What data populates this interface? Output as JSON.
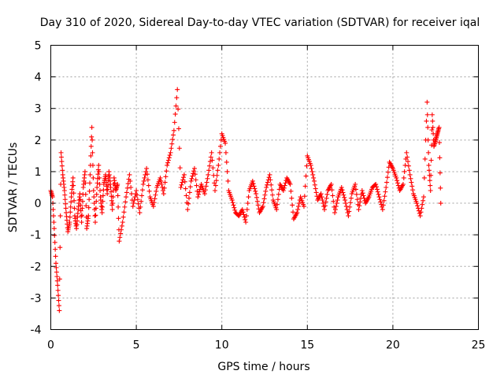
{
  "colors": {
    "series": "#ff0000",
    "axis": "#000000",
    "grid": "#a0a0a0",
    "background": "#ffffff"
  },
  "chart_data": {
    "type": "scatter",
    "title": "Day 310 of 2020, Sidereal Day-to-day VTEC variation (SDTVAR) for receiver iqal",
    "xlabel": "GPS time / hours",
    "ylabel": "SDTVAR / TECUs",
    "xlim": [
      0,
      25
    ],
    "ylim": [
      -4,
      5
    ],
    "xticks": [
      0,
      5,
      10,
      15,
      20,
      25
    ],
    "yticks": [
      -4,
      -3,
      -2,
      -1,
      0,
      1,
      2,
      3,
      4,
      5
    ],
    "grid": true,
    "marker": "+",
    "series": [
      {
        "name": "SDTVAR",
        "note": "dense '+' markers; representative trace points (hours, TECU) read from the figure",
        "x": [
          0.0,
          0.1,
          0.2,
          0.3,
          0.4,
          0.5,
          0.6,
          0.7,
          0.8,
          0.9,
          1.0,
          1.1,
          1.2,
          1.3,
          1.4,
          1.5,
          1.6,
          1.7,
          1.8,
          1.9,
          2.0,
          2.1,
          2.2,
          2.3,
          2.4,
          2.5,
          2.6,
          2.7,
          2.8,
          2.9,
          3.0,
          3.1,
          3.2,
          3.3,
          3.4,
          3.5,
          3.6,
          3.7,
          3.8,
          3.9,
          4.0,
          4.2,
          4.4,
          4.6,
          4.8,
          5.0,
          5.2,
          5.4,
          5.6,
          5.8,
          6.0,
          6.2,
          6.4,
          6.6,
          6.8,
          7.0,
          7.2,
          7.4,
          7.6,
          7.8,
          8.0,
          8.2,
          8.4,
          8.6,
          8.8,
          9.0,
          9.2,
          9.4,
          9.6,
          9.8,
          10.0,
          10.2,
          10.4,
          10.6,
          10.8,
          11.0,
          11.2,
          11.4,
          11.6,
          11.8,
          12.0,
          12.2,
          12.4,
          12.6,
          12.8,
          13.0,
          13.2,
          13.4,
          13.6,
          13.8,
          14.0,
          14.2,
          14.4,
          14.6,
          14.8,
          15.0,
          15.2,
          15.4,
          15.6,
          15.8,
          16.0,
          16.2,
          16.4,
          16.6,
          16.8,
          17.0,
          17.2,
          17.4,
          17.6,
          17.8,
          18.0,
          18.2,
          18.4,
          18.6,
          18.8,
          19.0,
          19.2,
          19.4,
          19.6,
          19.8,
          20.0,
          20.2,
          20.4,
          20.6,
          20.8,
          21.0,
          21.2,
          21.4,
          21.6,
          21.8,
          22.0,
          22.1,
          22.2,
          22.3,
          22.4,
          22.5,
          22.6,
          22.7,
          22.8
        ],
        "y": [
          0.4,
          0.2,
          -0.8,
          -1.9,
          -2.6,
          -3.4,
          1.6,
          0.9,
          0.4,
          -0.3,
          -0.9,
          -0.6,
          0.2,
          0.8,
          -0.4,
          -0.8,
          -0.2,
          0.3,
          -0.6,
          0.5,
          1.0,
          -0.8,
          -0.4,
          0.9,
          2.4,
          0.4,
          -0.6,
          0.5,
          1.2,
          0.2,
          -0.3,
          0.6,
          0.9,
          0.3,
          1.0,
          0.5,
          -0.2,
          0.8,
          0.4,
          0.6,
          -1.2,
          -0.6,
          0.2,
          0.9,
          -0.1,
          0.4,
          -0.3,
          0.6,
          1.1,
          0.2,
          -0.1,
          0.5,
          0.8,
          0.3,
          1.2,
          1.6,
          2.3,
          3.6,
          0.5,
          0.9,
          -0.2,
          0.7,
          1.1,
          0.2,
          0.6,
          0.3,
          0.9,
          1.6,
          0.4,
          1.2,
          2.2,
          1.9,
          0.4,
          0.1,
          -0.3,
          -0.4,
          -0.2,
          -0.6,
          0.4,
          0.7,
          0.3,
          -0.3,
          -0.1,
          0.5,
          0.9,
          0.1,
          -0.2,
          0.6,
          0.4,
          0.8,
          0.6,
          -0.5,
          -0.3,
          0.2,
          -0.1,
          1.5,
          1.2,
          0.7,
          0.1,
          0.3,
          -0.2,
          0.4,
          0.6,
          -0.3,
          0.2,
          0.5,
          0.1,
          -0.4,
          0.3,
          0.6,
          -0.2,
          0.4,
          0.0,
          0.2,
          0.5,
          0.6,
          0.2,
          -0.2,
          0.5,
          1.3,
          1.1,
          0.8,
          0.4,
          0.6,
          1.6,
          0.9,
          0.3,
          0.0,
          -0.4,
          0.2,
          3.2,
          1.2,
          0.4,
          2.8,
          1.8,
          2.0,
          2.2,
          2.4,
          0.0
        ]
      }
    ]
  }
}
